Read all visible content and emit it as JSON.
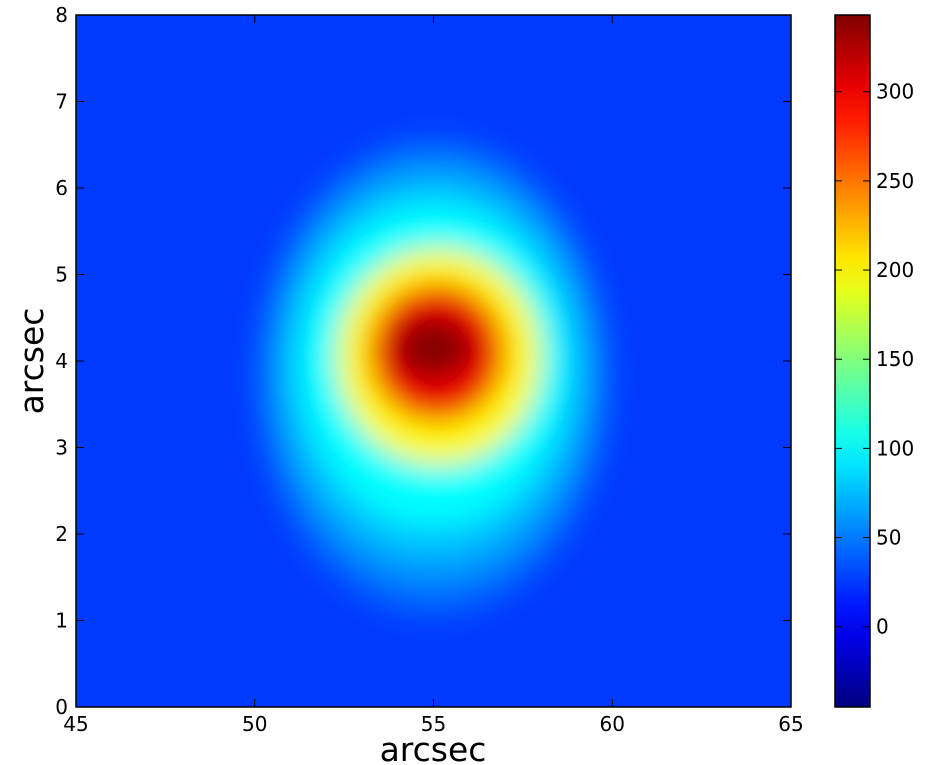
{
  "chart_data": {
    "type": "heatmap",
    "title": "",
    "xlabel": "arcsec",
    "ylabel": "arcsec",
    "xlim": [
      45,
      65
    ],
    "ylim": [
      0,
      8
    ],
    "x_ticks": [
      "45",
      "50",
      "55",
      "60",
      "65"
    ],
    "y_ticks": [
      "0",
      "1",
      "2",
      "3",
      "4",
      "5",
      "6",
      "7",
      "8"
    ],
    "colormap": "jet",
    "background_value": 25,
    "peak": {
      "x": 55.0,
      "y": 4.15,
      "value": 340
    },
    "contour_levels": [
      {
        "value": 100,
        "x_range": [
          51.3,
          58.7
        ],
        "y_range": [
          2.1,
          5.8
        ]
      },
      {
        "value": 200,
        "x_range": [
          52.3,
          58.0
        ],
        "y_range": [
          2.8,
          5.3
        ]
      },
      {
        "value": 300,
        "x_range": [
          53.2,
          57.0
        ],
        "y_range": [
          3.3,
          4.9
        ]
      }
    ],
    "colorbar": {
      "range": [
        -45,
        343
      ],
      "ticks": [
        "0",
        "50",
        "100",
        "150",
        "200",
        "250",
        "300"
      ]
    },
    "grid": false
  }
}
